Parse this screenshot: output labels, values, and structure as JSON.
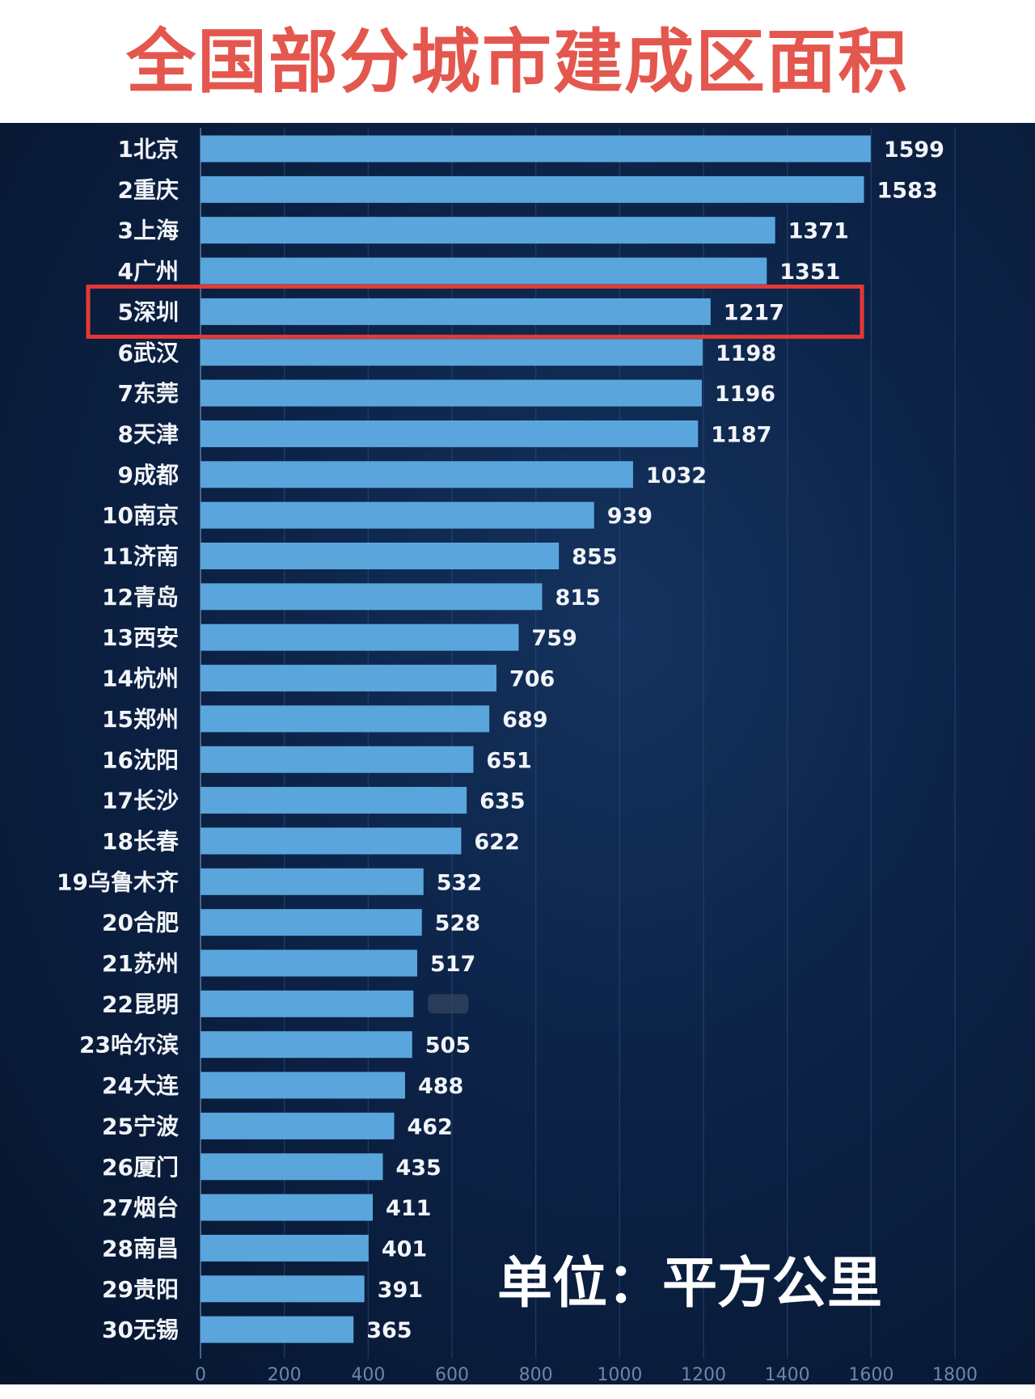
{
  "title": "全国部分城市建成区面积",
  "unit_note": "单位：平方公里",
  "colors": {
    "title": "#e4574e",
    "bar": "#5aa6dc",
    "highlight_box": "#e53935",
    "background": "#0c2246"
  },
  "chart_data": {
    "type": "bar",
    "orientation": "horizontal",
    "title": "全国部分城市建成区面积",
    "xlabel": "",
    "ylabel": "",
    "xlim": [
      0,
      1800
    ],
    "xticks": [
      "0",
      "200",
      "400",
      "600",
      "800",
      "1000",
      "1200",
      "1400",
      "1600",
      "1800"
    ],
    "grid": true,
    "highlighted": "5深圳",
    "categories": [
      "1北京",
      "2重庆",
      "3上海",
      "4广州",
      "5深圳",
      "6武汉",
      "7东莞",
      "8天津",
      "9成都",
      "10南京",
      "11济南",
      "12青岛",
      "13西安",
      "14杭州",
      "15郑州",
      "16沈阳",
      "17长沙",
      "18长春",
      "19乌鲁木齐",
      "20合肥",
      "21苏州",
      "22昆明",
      "23哈尔滨",
      "24大连",
      "25宁波",
      "26厦门",
      "27烟台",
      "28南昌",
      "29贵阳",
      "30无锡"
    ],
    "values": [
      1599,
      1583,
      1371,
      1351,
      1217,
      1198,
      1196,
      1187,
      1032,
      939,
      855,
      815,
      759,
      706,
      689,
      651,
      635,
      622,
      532,
      528,
      517,
      508,
      505,
      488,
      462,
      435,
      411,
      401,
      391,
      365
    ],
    "value_labels": [
      "1599",
      "1583",
      "1371",
      "1351",
      "1217",
      "1198",
      "1196",
      "1187",
      "1032",
      "939",
      "855",
      "815",
      "759",
      "706",
      "689",
      "651",
      "635",
      "622",
      "532",
      "528",
      "517",
      "",
      "505",
      "488",
      "462",
      "435",
      "411",
      "401",
      "391",
      "365"
    ]
  }
}
